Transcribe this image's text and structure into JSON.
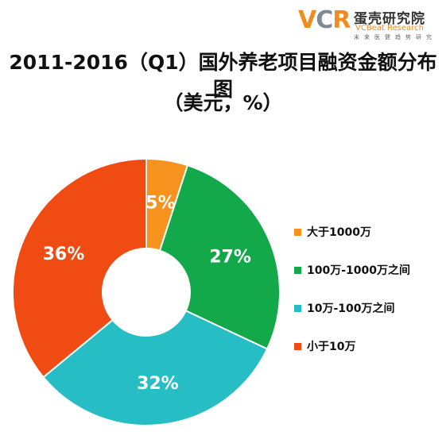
{
  "logo": {
    "mark_v": "V",
    "mark_c": "C",
    "mark_r": "R",
    "name": "蛋壳研究院",
    "english": "VCBeat Research",
    "tagline": "未来医健趋势研究"
  },
  "chart_data": {
    "type": "pie",
    "title": "2011-2016（Q1）国外养老项目融资金额分布图",
    "subtitle": "（美元，%）",
    "categories": [
      "大于1000万",
      "100万-1000万之间",
      "10万-100万之间",
      "小于10万"
    ],
    "values": [
      5,
      27,
      32,
      36
    ],
    "value_labels": [
      "5%",
      "27%",
      "32%",
      "36%"
    ],
    "colors": [
      "#f6921e",
      "#13a84a",
      "#27bdc4",
      "#f04b12"
    ],
    "legend_position": "right",
    "donut": true
  }
}
